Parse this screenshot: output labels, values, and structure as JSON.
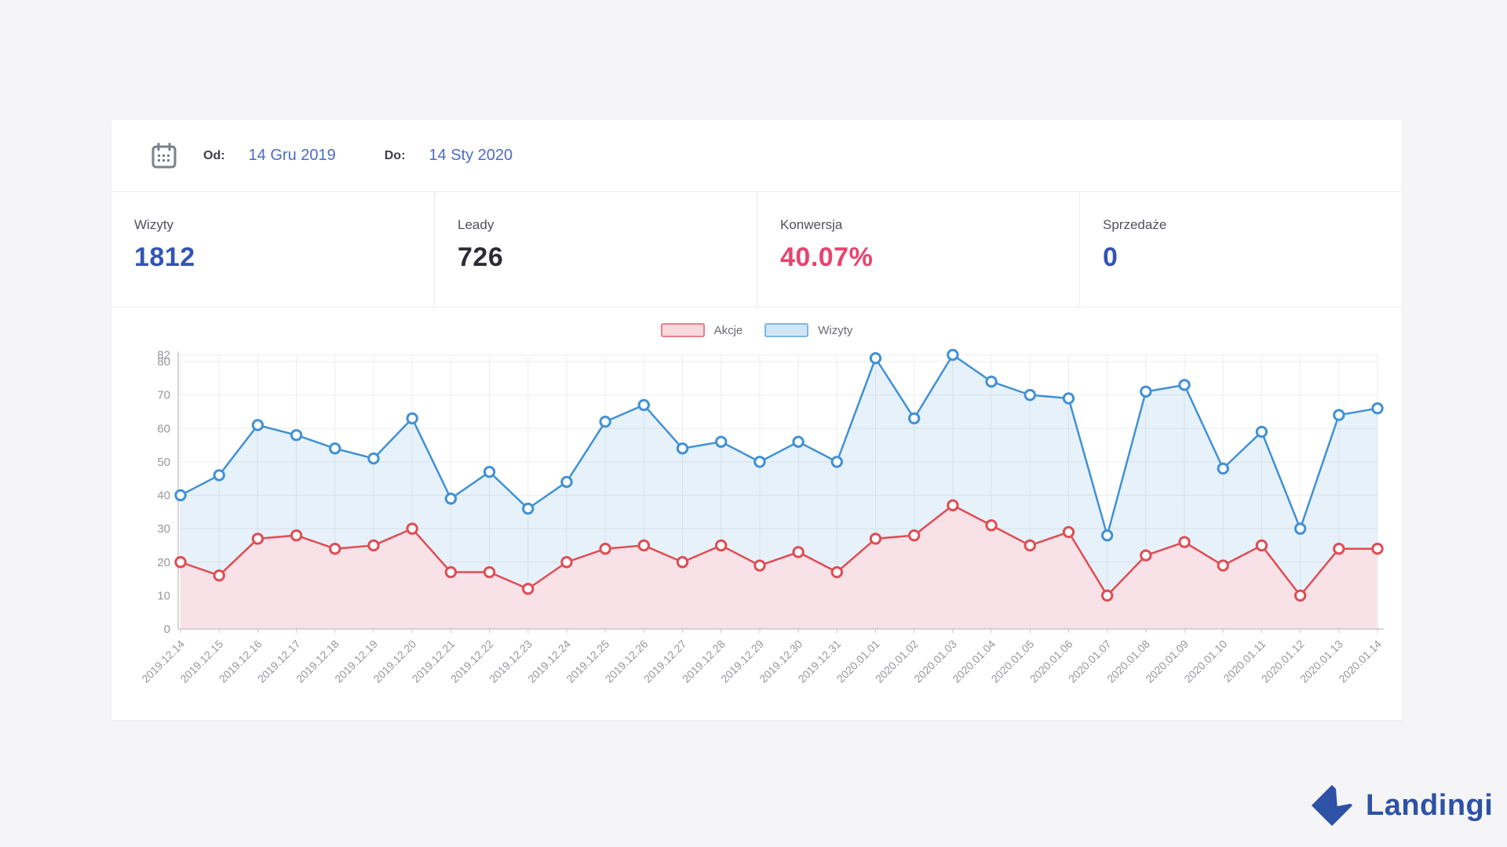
{
  "date_filter": {
    "calendar_icon": "calendar-icon",
    "od_label": "Od:",
    "od_value": "14 Gru 2019",
    "do_label": "Do:",
    "do_value": "14 Sty 2020",
    "link_color": "#4a6cc3"
  },
  "stats": [
    {
      "label": "Wizyty",
      "value": "1812",
      "value_color": "#3354b5"
    },
    {
      "label": "Leady",
      "value": "726",
      "value_color": "#2c2c34"
    },
    {
      "label": "Konwersja",
      "value": "40.07%",
      "value_color": "#e8436e"
    },
    {
      "label": "Sprzedaże",
      "value": "0",
      "value_color": "#3354b5"
    }
  ],
  "chart_data": {
    "type": "area",
    "title": "",
    "xlabel": "",
    "ylabel": "",
    "ylim": [
      0,
      82
    ],
    "yticks": [
      0,
      10,
      20,
      30,
      40,
      50,
      60,
      70,
      80,
      82
    ],
    "grid": true,
    "legend_position": "top-center",
    "x": [
      "2019.12.14",
      "2019.12.15",
      "2019.12.16",
      "2019.12.17",
      "2019.12.18",
      "2019.12.19",
      "2019.12.20",
      "2019.12.21",
      "2019.12.22",
      "2019.12.23",
      "2019.12.24",
      "2019.12.25",
      "2019.12.26",
      "2019.12.27",
      "2019.12.28",
      "2019.12.29",
      "2019.12.30",
      "2019.12.31",
      "2020.01.01",
      "2020.01.02",
      "2020.01.03",
      "2020.01.04",
      "2020.01.05",
      "2020.01.06",
      "2020.01.07",
      "2020.01.08",
      "2020.01.09",
      "2020.01.10",
      "2020.01.11",
      "2020.01.12",
      "2020.01.13",
      "2020.01.14"
    ],
    "series": [
      {
        "name": "Akcje",
        "color": "#e04c53",
        "fill": "#f9e2e7",
        "swatch_fill": "#f7d9de",
        "swatch_border": "#e8808a",
        "values": [
          20,
          16,
          27,
          28,
          24,
          25,
          30,
          17,
          17,
          12,
          20,
          24,
          25,
          20,
          25,
          19,
          23,
          17,
          27,
          28,
          37,
          31,
          25,
          29,
          10,
          22,
          26,
          19,
          25,
          10,
          24,
          24
        ]
      },
      {
        "name": "Wizyty",
        "color": "#4191d5",
        "fill": "rgba(65,145,213,0.13)",
        "swatch_fill": "#d2e5f6",
        "swatch_border": "#7fb6e3",
        "values": [
          40,
          46,
          61,
          58,
          54,
          51,
          63,
          39,
          47,
          36,
          44,
          62,
          67,
          54,
          56,
          50,
          56,
          50,
          81,
          63,
          82,
          74,
          70,
          69,
          28,
          71,
          73,
          48,
          59,
          30,
          64,
          66
        ]
      }
    ],
    "axis_colors": {
      "grid": "#ededed",
      "axis": "#c8c8cc",
      "tick_text": "#97979d"
    }
  },
  "branding": {
    "logo_text": "Landingi",
    "logo_color": "#2d52a6"
  }
}
